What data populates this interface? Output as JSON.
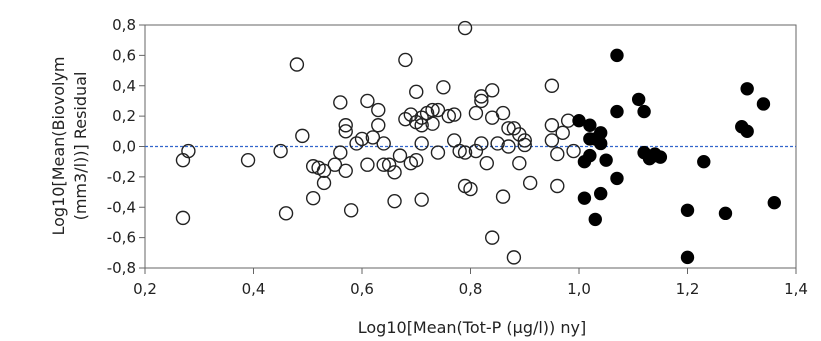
{
  "chart_data": {
    "type": "scatter",
    "xlabel": "Log10[Mean(Tot-P (µg/l)) ny]",
    "ylabel_lines": [
      "Log10[Mean(Biovolym",
      "(mm3/l))] Residual"
    ],
    "xlim": [
      0.2,
      1.4
    ],
    "ylim": [
      -0.8,
      0.8
    ],
    "x_ticks": [
      0.2,
      0.4,
      0.6,
      0.8,
      1.0,
      1.2,
      1.4
    ],
    "x_tick_labels": [
      "0,2",
      "0,4",
      "0,6",
      "0,8",
      "1,0",
      "1,2",
      "1,4"
    ],
    "y_ticks": [
      -0.8,
      -0.6,
      -0.4,
      -0.2,
      0.0,
      0.2,
      0.4,
      0.6,
      0.8
    ],
    "y_tick_labels": [
      "-0,8",
      "-0,6",
      "-0,4",
      "-0,2",
      "0,0",
      "0,2",
      "0,4",
      "0,6",
      "0,8"
    ],
    "reference_line": {
      "y": 0.0,
      "style": "dashed",
      "color": "#3366cc"
    },
    "grid": false,
    "colors": {
      "open_marker_stroke": "#222222",
      "filled_marker": "#000000",
      "axis": "#666666"
    },
    "series": [
      {
        "marker": "open-circle",
        "points": [
          [
            0.27,
            -0.47
          ],
          [
            0.27,
            -0.09
          ],
          [
            0.28,
            -0.03
          ],
          [
            0.39,
            -0.09
          ],
          [
            0.45,
            -0.03
          ],
          [
            0.46,
            -0.44
          ],
          [
            0.48,
            0.54
          ],
          [
            0.49,
            0.07
          ],
          [
            0.51,
            -0.34
          ],
          [
            0.51,
            -0.13
          ],
          [
            0.52,
            -0.14
          ],
          [
            0.53,
            -0.24
          ],
          [
            0.53,
            -0.16
          ],
          [
            0.55,
            -0.12
          ],
          [
            0.56,
            0.29
          ],
          [
            0.56,
            -0.04
          ],
          [
            0.57,
            0.14
          ],
          [
            0.57,
            0.1
          ],
          [
            0.57,
            -0.16
          ],
          [
            0.58,
            -0.42
          ],
          [
            0.59,
            0.02
          ],
          [
            0.6,
            0.05
          ],
          [
            0.61,
            0.3
          ],
          [
            0.61,
            -0.12
          ],
          [
            0.62,
            0.06
          ],
          [
            0.63,
            0.24
          ],
          [
            0.63,
            0.14
          ],
          [
            0.64,
            0.02
          ],
          [
            0.64,
            -0.12
          ],
          [
            0.65,
            -0.12
          ],
          [
            0.66,
            -0.17
          ],
          [
            0.66,
            -0.36
          ],
          [
            0.67,
            -0.06
          ],
          [
            0.68,
            0.57
          ],
          [
            0.68,
            0.18
          ],
          [
            0.69,
            0.21
          ],
          [
            0.69,
            -0.11
          ],
          [
            0.7,
            0.36
          ],
          [
            0.7,
            0.16
          ],
          [
            0.7,
            -0.09
          ],
          [
            0.71,
            0.19
          ],
          [
            0.71,
            0.14
          ],
          [
            0.71,
            0.02
          ],
          [
            0.71,
            -0.35
          ],
          [
            0.72,
            0.22
          ],
          [
            0.73,
            0.24
          ],
          [
            0.73,
            0.15
          ],
          [
            0.74,
            0.24
          ],
          [
            0.74,
            -0.04
          ],
          [
            0.75,
            0.39
          ],
          [
            0.76,
            0.2
          ],
          [
            0.77,
            0.21
          ],
          [
            0.77,
            0.04
          ],
          [
            0.78,
            -0.03
          ],
          [
            0.79,
            -0.04
          ],
          [
            0.79,
            -0.26
          ],
          [
            0.79,
            0.78
          ],
          [
            0.8,
            -0.28
          ],
          [
            0.81,
            -0.03
          ],
          [
            0.81,
            0.22
          ],
          [
            0.82,
            0.33
          ],
          [
            0.82,
            0.3
          ],
          [
            0.82,
            0.02
          ],
          [
            0.83,
            -0.11
          ],
          [
            0.84,
            0.19
          ],
          [
            0.84,
            -0.6
          ],
          [
            0.84,
            0.37
          ],
          [
            0.85,
            0.02
          ],
          [
            0.86,
            0.22
          ],
          [
            0.86,
            -0.33
          ],
          [
            0.87,
            0.0
          ],
          [
            0.87,
            0.12
          ],
          [
            0.88,
            -0.73
          ],
          [
            0.88,
            0.12
          ],
          [
            0.89,
            0.08
          ],
          [
            0.89,
            -0.11
          ],
          [
            0.9,
            0.01
          ],
          [
            0.9,
            0.04
          ],
          [
            0.91,
            -0.24
          ],
          [
            0.95,
            0.4
          ],
          [
            0.95,
            0.14
          ],
          [
            0.95,
            0.04
          ],
          [
            0.96,
            -0.05
          ],
          [
            0.96,
            -0.26
          ],
          [
            0.97,
            0.09
          ],
          [
            0.98,
            0.17
          ],
          [
            0.99,
            -0.03
          ]
        ]
      },
      {
        "marker": "filled-circle",
        "points": [
          [
            1.0,
            0.17
          ],
          [
            1.01,
            -0.1
          ],
          [
            1.01,
            -0.34
          ],
          [
            1.02,
            0.14
          ],
          [
            1.02,
            0.05
          ],
          [
            1.02,
            -0.06
          ],
          [
            1.03,
            0.05
          ],
          [
            1.03,
            -0.48
          ],
          [
            1.04,
            0.09
          ],
          [
            1.04,
            -0.31
          ],
          [
            1.04,
            0.02
          ],
          [
            1.05,
            -0.09
          ],
          [
            1.07,
            0.6
          ],
          [
            1.07,
            0.23
          ],
          [
            1.07,
            -0.21
          ],
          [
            1.11,
            0.31
          ],
          [
            1.12,
            0.23
          ],
          [
            1.12,
            -0.04
          ],
          [
            1.13,
            -0.08
          ],
          [
            1.14,
            -0.06
          ],
          [
            1.14,
            -0.05
          ],
          [
            1.15,
            -0.07
          ],
          [
            1.2,
            -0.42
          ],
          [
            1.2,
            -0.73
          ],
          [
            1.23,
            -0.1
          ],
          [
            1.27,
            -0.44
          ],
          [
            1.3,
            0.13
          ],
          [
            1.31,
            0.1
          ],
          [
            1.31,
            0.38
          ],
          [
            1.34,
            0.28
          ],
          [
            1.36,
            -0.37
          ]
        ]
      }
    ]
  }
}
